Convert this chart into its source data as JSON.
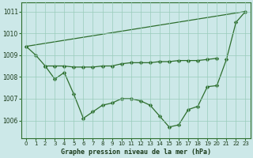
{
  "line_rising": {
    "x": [
      0,
      23
    ],
    "y": [
      1009.4,
      1011.0
    ],
    "style": "solid",
    "has_markers": false
  },
  "line_flat": {
    "x": [
      0,
      1,
      2,
      3,
      4,
      5,
      6,
      7,
      8,
      9,
      10,
      11,
      12,
      13,
      14,
      15,
      16,
      17,
      18,
      19,
      20
    ],
    "y": [
      1009.4,
      1009.0,
      1008.5,
      1008.5,
      1008.5,
      1008.45,
      1008.45,
      1008.45,
      1008.5,
      1008.5,
      1008.6,
      1008.65,
      1008.65,
      1008.65,
      1008.7,
      1008.7,
      1008.75,
      1008.75,
      1008.75,
      1008.8,
      1008.85
    ],
    "style": "solid",
    "has_markers": true
  },
  "line_vshaped": {
    "x": [
      2,
      3,
      4,
      5,
      6,
      7,
      8,
      9,
      10,
      11,
      12,
      13,
      14,
      15,
      16,
      17,
      18,
      19,
      20,
      21,
      22,
      23
    ],
    "y": [
      1008.5,
      1007.9,
      1008.2,
      1007.2,
      1006.1,
      1006.4,
      1006.7,
      1006.8,
      1007.0,
      1007.0,
      1006.9,
      1006.7,
      1006.2,
      1005.7,
      1005.8,
      1006.5,
      1006.65,
      1007.55,
      1007.6,
      1008.8,
      1010.5,
      1011.0
    ],
    "style": "solid",
    "has_markers": true
  },
  "background_color": "#cce8e8",
  "grid_color": "#99ccbb",
  "line_color": "#2d6e2d",
  "marker": "D",
  "marker_size": 2.5,
  "title": "Graphe pression niveau de la mer (hPa)",
  "ylim": [
    1005.2,
    1011.4
  ],
  "xlim": [
    -0.5,
    23.5
  ],
  "yticks": [
    1006,
    1007,
    1008,
    1009,
    1010,
    1011
  ],
  "xticks": [
    0,
    1,
    2,
    3,
    4,
    5,
    6,
    7,
    8,
    9,
    10,
    11,
    12,
    13,
    14,
    15,
    16,
    17,
    18,
    19,
    20,
    21,
    22,
    23
  ]
}
